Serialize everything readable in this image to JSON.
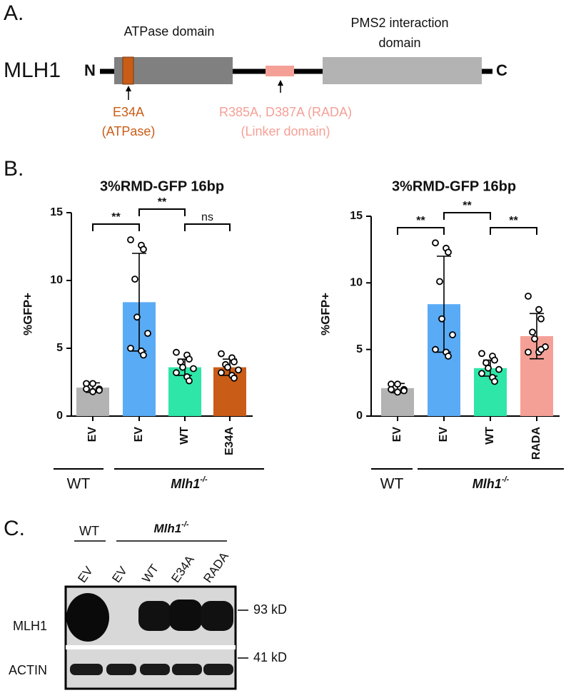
{
  "panel_labels": [
    "A.",
    "B.",
    "C."
  ],
  "panel_a": {
    "protein": "MLH1",
    "n_term": "N",
    "c_term": "C",
    "atpase_domain": "ATPase domain",
    "pms2_domain": [
      "PMS2 interaction",
      "domain"
    ],
    "mutation_atpase": [
      "E34A",
      "(ATPase)"
    ],
    "mutation_linker": [
      "R385A, D387A (RADA)",
      "(Linker domain)"
    ]
  },
  "chart_data": [
    {
      "type": "bar",
      "title": "3%RMD-GFP 16bp",
      "y_label": "%GFP+",
      "categories": [
        "EV",
        "EV",
        "WT",
        "E34A"
      ],
      "colors": [
        "#b3b3b3",
        "#5aabf5",
        "#2ee6a8",
        "#c95c17"
      ],
      "values": [
        2.1,
        8.4,
        3.6,
        3.6
      ],
      "errors": [
        0.35,
        3.6,
        0.6,
        0.6
      ],
      "points": [
        [
          2.4,
          2.4,
          2.0,
          2.0,
          1.8,
          1.9
        ],
        [
          13.0,
          12.6,
          12.3,
          10.1,
          7.3,
          6.1,
          5.0,
          4.8,
          4.5
        ],
        [
          4.7,
          4.5,
          4.2,
          4.0,
          3.6,
          3.5,
          3.2,
          2.9,
          2.6
        ],
        [
          4.6,
          4.3,
          4.0,
          3.8,
          3.6,
          3.4,
          3.2,
          3.0,
          2.8
        ]
      ],
      "ylim": [
        0,
        15
      ],
      "yticks": [
        0,
        5,
        10,
        15
      ],
      "significance": [
        {
          "label": "**",
          "from": 0,
          "to": 1
        },
        {
          "label": "**",
          "from": 1,
          "to": 2
        },
        {
          "label": "ns",
          "from": 2,
          "to": 3
        }
      ],
      "groups": [
        {
          "label": "WT"
        },
        {
          "label": "Mlh1",
          "superscript": "-/-"
        }
      ]
    },
    {
      "type": "bar",
      "title": "3%RMD-GFP 16bp",
      "y_label": "%GFP+",
      "categories": [
        "EV",
        "EV",
        "WT",
        "RADA"
      ],
      "colors": [
        "#b3b3b3",
        "#5aabf5",
        "#2ee6a8",
        "#f5a097"
      ],
      "values": [
        2.1,
        8.4,
        3.6,
        6.0
      ],
      "errors": [
        0.35,
        3.6,
        0.6,
        1.7
      ],
      "points": [
        [
          2.4,
          2.4,
          2.0,
          2.0,
          1.8,
          1.9
        ],
        [
          13.0,
          12.6,
          12.3,
          10.1,
          7.3,
          6.1,
          5.0,
          4.8,
          4.5
        ],
        [
          4.7,
          4.5,
          4.2,
          4.0,
          3.6,
          3.5,
          3.2,
          2.9,
          2.6
        ],
        [
          9.0,
          8.0,
          7.3,
          6.3,
          5.8,
          5.2,
          4.8,
          4.8,
          5.0
        ]
      ],
      "ylim": [
        0,
        15
      ],
      "yticks": [
        0,
        5,
        10,
        15
      ],
      "significance": [
        {
          "label": "**",
          "from": 0,
          "to": 1
        },
        {
          "label": "**",
          "from": 1,
          "to": 2
        },
        {
          "label": "**",
          "from": 2,
          "to": 3
        }
      ],
      "groups": [
        {
          "label": "WT"
        },
        {
          "label": "Mlh1",
          "superscript": "-/-"
        }
      ]
    }
  ],
  "panel_c": {
    "group_wt": "WT",
    "group_ko": {
      "label": "Mlh1",
      "superscript": "-/-"
    },
    "lanes": [
      "EV",
      "EV",
      "WT",
      "E34A",
      "RADA"
    ],
    "rows": [
      "MLH1",
      "ACTIN"
    ],
    "markers": [
      "93 kD",
      "41 kD"
    ]
  }
}
